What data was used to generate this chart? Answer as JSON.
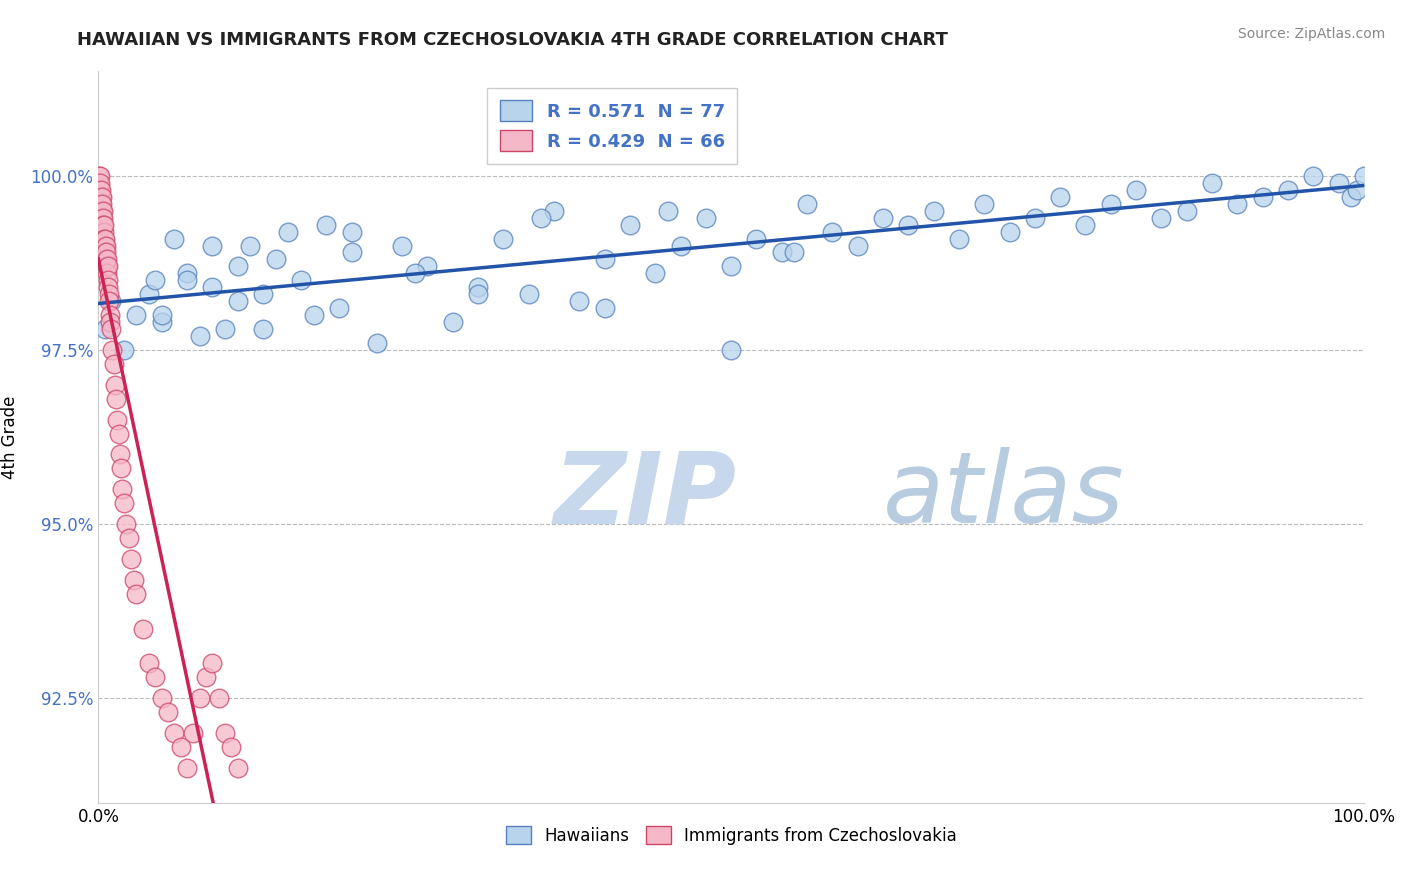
{
  "title": "HAWAIIAN VS IMMIGRANTS FROM CZECHOSLOVAKIA 4TH GRADE CORRELATION CHART",
  "source": "Source: ZipAtlas.com",
  "ylabel": "4th Grade",
  "xlim": [
    0.0,
    100.0
  ],
  "ylim": [
    91.0,
    101.5
  ],
  "yticks": [
    92.5,
    95.0,
    97.5,
    100.0
  ],
  "ytick_labels": [
    "92.5%",
    "95.0%",
    "97.5%",
    "100.0%"
  ],
  "xtick_labels": [
    "0.0%",
    "100.0%"
  ],
  "blue_label": "Hawaiians",
  "pink_label": "Immigrants from Czechoslovakia",
  "blue_R": "0.571",
  "blue_N": "77",
  "pink_R": "0.429",
  "pink_N": "66",
  "blue_fill": "#B8D4EC",
  "pink_fill": "#F5B8C8",
  "blue_edge": "#5580BB",
  "pink_edge": "#CC4466",
  "blue_line": "#2255AA",
  "pink_line": "#CC2255",
  "watermark_zip": "ZIP",
  "watermark_atlas": "atlas",
  "watermark_zip_color": "#C8D8EC",
  "watermark_atlas_color": "#B8CCE0",
  "blue_x": [
    0.5,
    1.0,
    2.0,
    3.0,
    4.0,
    4.5,
    5.0,
    6.0,
    7.0,
    8.0,
    9.0,
    10.0,
    11.0,
    12.0,
    13.0,
    14.0,
    15.0,
    16.0,
    17.0,
    18.0,
    19.0,
    20.0,
    22.0,
    24.0,
    26.0,
    28.0,
    30.0,
    32.0,
    34.0,
    36.0,
    38.0,
    40.0,
    42.0,
    44.0,
    46.0,
    48.0,
    50.0,
    52.0,
    54.0,
    56.0,
    58.0,
    60.0,
    62.0,
    64.0,
    66.0,
    68.0,
    70.0,
    72.0,
    74.0,
    76.0,
    78.0,
    80.0,
    82.0,
    84.0,
    86.0,
    88.0,
    90.0,
    92.0,
    94.0,
    96.0,
    98.0,
    99.0,
    99.5,
    100.0,
    5.0,
    7.0,
    9.0,
    11.0,
    13.0,
    20.0,
    25.0,
    30.0,
    35.0,
    40.0,
    45.0,
    50.0,
    55.0
  ],
  "blue_y": [
    97.8,
    98.2,
    97.5,
    98.0,
    98.3,
    98.5,
    97.9,
    99.1,
    98.6,
    97.7,
    98.4,
    97.8,
    98.7,
    99.0,
    98.3,
    98.8,
    99.2,
    98.5,
    98.0,
    99.3,
    98.1,
    98.9,
    97.6,
    99.0,
    98.7,
    97.9,
    98.4,
    99.1,
    98.3,
    99.5,
    98.2,
    98.8,
    99.3,
    98.6,
    99.0,
    99.4,
    98.7,
    99.1,
    98.9,
    99.6,
    99.2,
    99.0,
    99.4,
    99.3,
    99.5,
    99.1,
    99.6,
    99.2,
    99.4,
    99.7,
    99.3,
    99.6,
    99.8,
    99.4,
    99.5,
    99.9,
    99.6,
    99.7,
    99.8,
    100.0,
    99.9,
    99.7,
    99.8,
    100.0,
    98.0,
    98.5,
    99.0,
    98.2,
    97.8,
    99.2,
    98.6,
    98.3,
    99.4,
    98.1,
    99.5,
    97.5,
    98.9
  ],
  "pink_x": [
    0.05,
    0.08,
    0.1,
    0.12,
    0.15,
    0.18,
    0.2,
    0.22,
    0.25,
    0.28,
    0.3,
    0.32,
    0.35,
    0.38,
    0.4,
    0.42,
    0.45,
    0.48,
    0.5,
    0.52,
    0.55,
    0.58,
    0.6,
    0.62,
    0.65,
    0.68,
    0.7,
    0.72,
    0.75,
    0.78,
    0.8,
    0.85,
    0.9,
    0.95,
    1.0,
    1.1,
    1.2,
    1.3,
    1.4,
    1.5,
    1.6,
    1.7,
    1.8,
    1.9,
    2.0,
    2.2,
    2.4,
    2.6,
    2.8,
    3.0,
    3.5,
    4.0,
    4.5,
    5.0,
    5.5,
    6.0,
    6.5,
    7.0,
    7.5,
    8.0,
    8.5,
    9.0,
    9.5,
    10.0,
    10.5,
    11.0
  ],
  "pink_y": [
    100.0,
    99.9,
    100.0,
    99.8,
    99.9,
    99.7,
    99.8,
    99.6,
    99.7,
    99.5,
    99.6,
    99.4,
    99.5,
    99.4,
    99.3,
    99.2,
    99.3,
    99.1,
    99.0,
    99.1,
    98.9,
    99.0,
    98.8,
    98.9,
    98.7,
    98.8,
    98.6,
    98.7,
    98.5,
    98.4,
    98.3,
    98.2,
    98.0,
    97.9,
    97.8,
    97.5,
    97.3,
    97.0,
    96.8,
    96.5,
    96.3,
    96.0,
    95.8,
    95.5,
    95.3,
    95.0,
    94.8,
    94.5,
    94.2,
    94.0,
    93.5,
    93.0,
    92.8,
    92.5,
    92.3,
    92.0,
    91.8,
    91.5,
    92.0,
    92.5,
    92.8,
    93.0,
    92.5,
    92.0,
    91.8,
    91.5
  ]
}
